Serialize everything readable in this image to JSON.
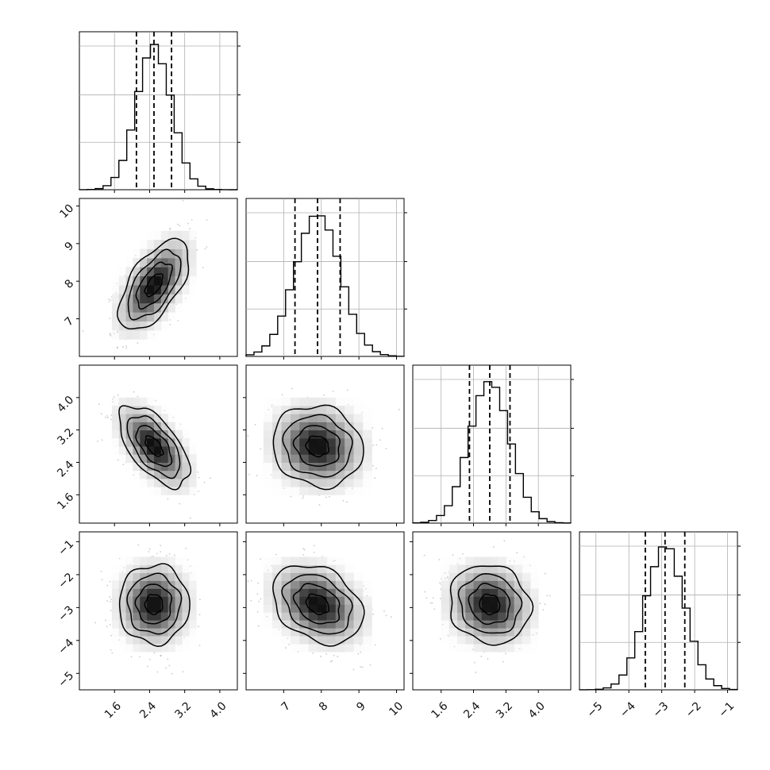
{
  "chart_data": {
    "type": "corner",
    "colors": {
      "line": "#000000",
      "grid": "#b0b0b0",
      "points": "#8a8a8a"
    },
    "params": [
      {
        "range": [
          0.8,
          4.4
        ],
        "ticks": [
          1.6,
          2.4,
          3.2,
          4.0
        ],
        "tick_labels": [
          "1.6",
          "2.4",
          "3.2",
          "4.0"
        ],
        "mean": 2.5,
        "sd": 0.4,
        "quantiles": [
          2.1,
          2.5,
          2.9
        ]
      },
      {
        "range": [
          6.0,
          10.2
        ],
        "ticks": [
          7,
          8,
          9,
          10
        ],
        "tick_labels": [
          "7",
          "8",
          "9",
          "10"
        ],
        "mean": 7.9,
        "sd": 0.6,
        "quantiles": [
          7.3,
          7.9,
          8.5
        ]
      },
      {
        "range": [
          0.9,
          4.8
        ],
        "ticks": [
          1.6,
          2.4,
          3.2,
          4.0
        ],
        "tick_labels": [
          "1.6",
          "2.4",
          "3.2",
          "4.0"
        ],
        "mean": 2.8,
        "sd": 0.5,
        "quantiles": [
          2.3,
          2.8,
          3.3
        ]
      },
      {
        "range": [
          -5.5,
          -0.7
        ],
        "ticks": [
          -5,
          -4,
          -3,
          -2,
          -1
        ],
        "tick_labels": [
          "−5",
          "−4",
          "−3",
          "−2",
          "−1"
        ],
        "mean": -2.9,
        "sd": 0.6,
        "quantiles": [
          -3.5,
          -2.9,
          -2.3
        ]
      }
    ],
    "correlations": [
      [
        1,
        0.6,
        -0.6,
        0.0
      ],
      [
        0.6,
        1,
        -0.1,
        -0.3
      ],
      [
        -0.6,
        -0.1,
        1,
        -0.1
      ],
      [
        0.0,
        -0.3,
        -0.1,
        1
      ]
    ],
    "histogram_bins": 20,
    "contour_levels_sigma": [
      0.5,
      1.0,
      1.5,
      2.0
    ]
  }
}
